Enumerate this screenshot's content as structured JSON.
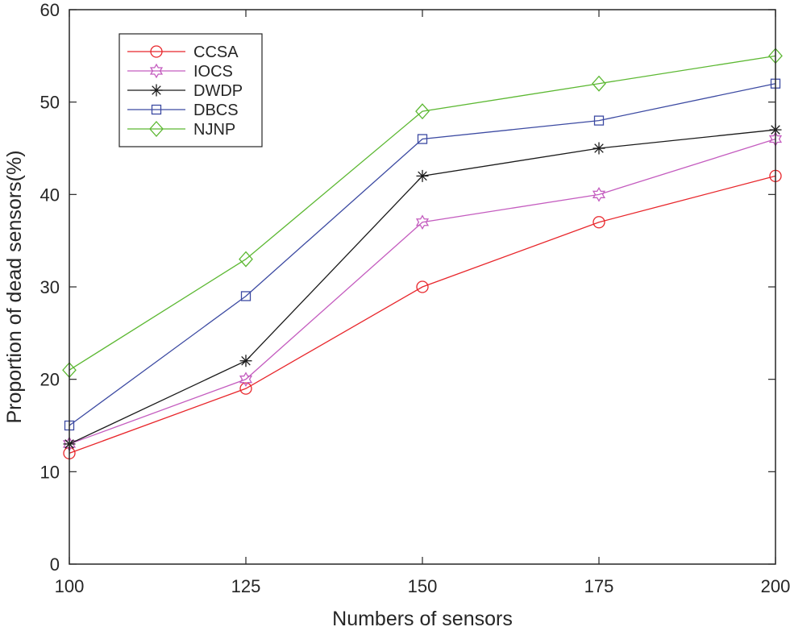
{
  "chart_data": {
    "type": "line",
    "title": "",
    "xlabel": "Numbers of sensors",
    "ylabel": "Proportion of dead sensors(%)",
    "x": [
      100,
      125,
      150,
      175,
      200
    ],
    "xlim": [
      100,
      200
    ],
    "ylim": [
      0,
      60
    ],
    "xticks": [
      100,
      125,
      150,
      175,
      200
    ],
    "yticks": [
      0,
      10,
      20,
      30,
      40,
      50,
      60
    ],
    "grid": false,
    "legend_position": "top-left",
    "series": [
      {
        "name": "CCSA",
        "values": [
          12,
          19,
          30,
          37,
          42
        ],
        "color": "#e8262b",
        "marker": "circle"
      },
      {
        "name": "IOCS",
        "values": [
          13,
          20,
          37,
          40,
          46
        ],
        "color": "#c45cbf",
        "marker": "hexagram"
      },
      {
        "name": "DWDP",
        "values": [
          13,
          22,
          42,
          45,
          47
        ],
        "color": "#1a1a1a",
        "marker": "asterisk"
      },
      {
        "name": "DBCS",
        "values": [
          15,
          29,
          46,
          48,
          52
        ],
        "color": "#3c4aa2",
        "marker": "square"
      },
      {
        "name": "NJNP",
        "values": [
          21,
          33,
          49,
          52,
          55
        ],
        "color": "#5cb832",
        "marker": "diamond"
      }
    ]
  }
}
